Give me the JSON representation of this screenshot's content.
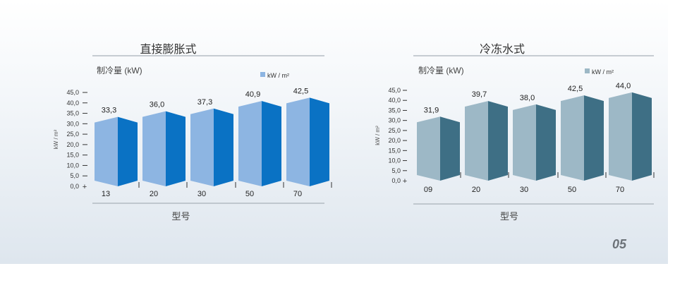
{
  "page_number": "05",
  "chart_data": [
    {
      "type": "bar",
      "title": "直接膨胀式",
      "ylabel": "制冷量 (kW)",
      "yaxis_side_label": "kW / m²",
      "xlabel": "型号",
      "legend": "kW / m²",
      "legend_position": "top-right",
      "categories": [
        "13",
        "20",
        "30",
        "50",
        "70"
      ],
      "values": [
        33.3,
        36.0,
        37.3,
        40.9,
        42.5
      ],
      "value_labels": [
        "33,3",
        "36,0",
        "37,3",
        "40,9",
        "42,5"
      ],
      "ylim": [
        0,
        45
      ],
      "yticks": [
        "0,0",
        "5,0",
        "10,0",
        "15,0",
        "20,0",
        "25,0",
        "30,0",
        "35,0",
        "40,0",
        "45,0"
      ],
      "colors": {
        "front": "#8db5e2",
        "side": "#0a72c4",
        "legend": "#8db5e2"
      }
    },
    {
      "type": "bar",
      "title": "冷冻水式",
      "ylabel": "制冷量 (kW)",
      "yaxis_side_label": "kW / m²",
      "xlabel": "型号",
      "legend": "kW / m²",
      "legend_position": "top-right",
      "categories": [
        "09",
        "20",
        "30",
        "50",
        "70"
      ],
      "values": [
        31.9,
        39.7,
        38.0,
        42.5,
        44.0
      ],
      "value_labels": [
        "31,9",
        "39,7",
        "38,0",
        "42,5",
        "44,0"
      ],
      "ylim": [
        0,
        45
      ],
      "yticks": [
        "0,0",
        "5,0",
        "10,0",
        "15,0",
        "20,0",
        "25,0",
        "30,0",
        "35,0",
        "40,0",
        "45,0"
      ],
      "colors": {
        "front": "#9db8c6",
        "side": "#3e6f85",
        "legend": "#9db8c6"
      }
    }
  ]
}
